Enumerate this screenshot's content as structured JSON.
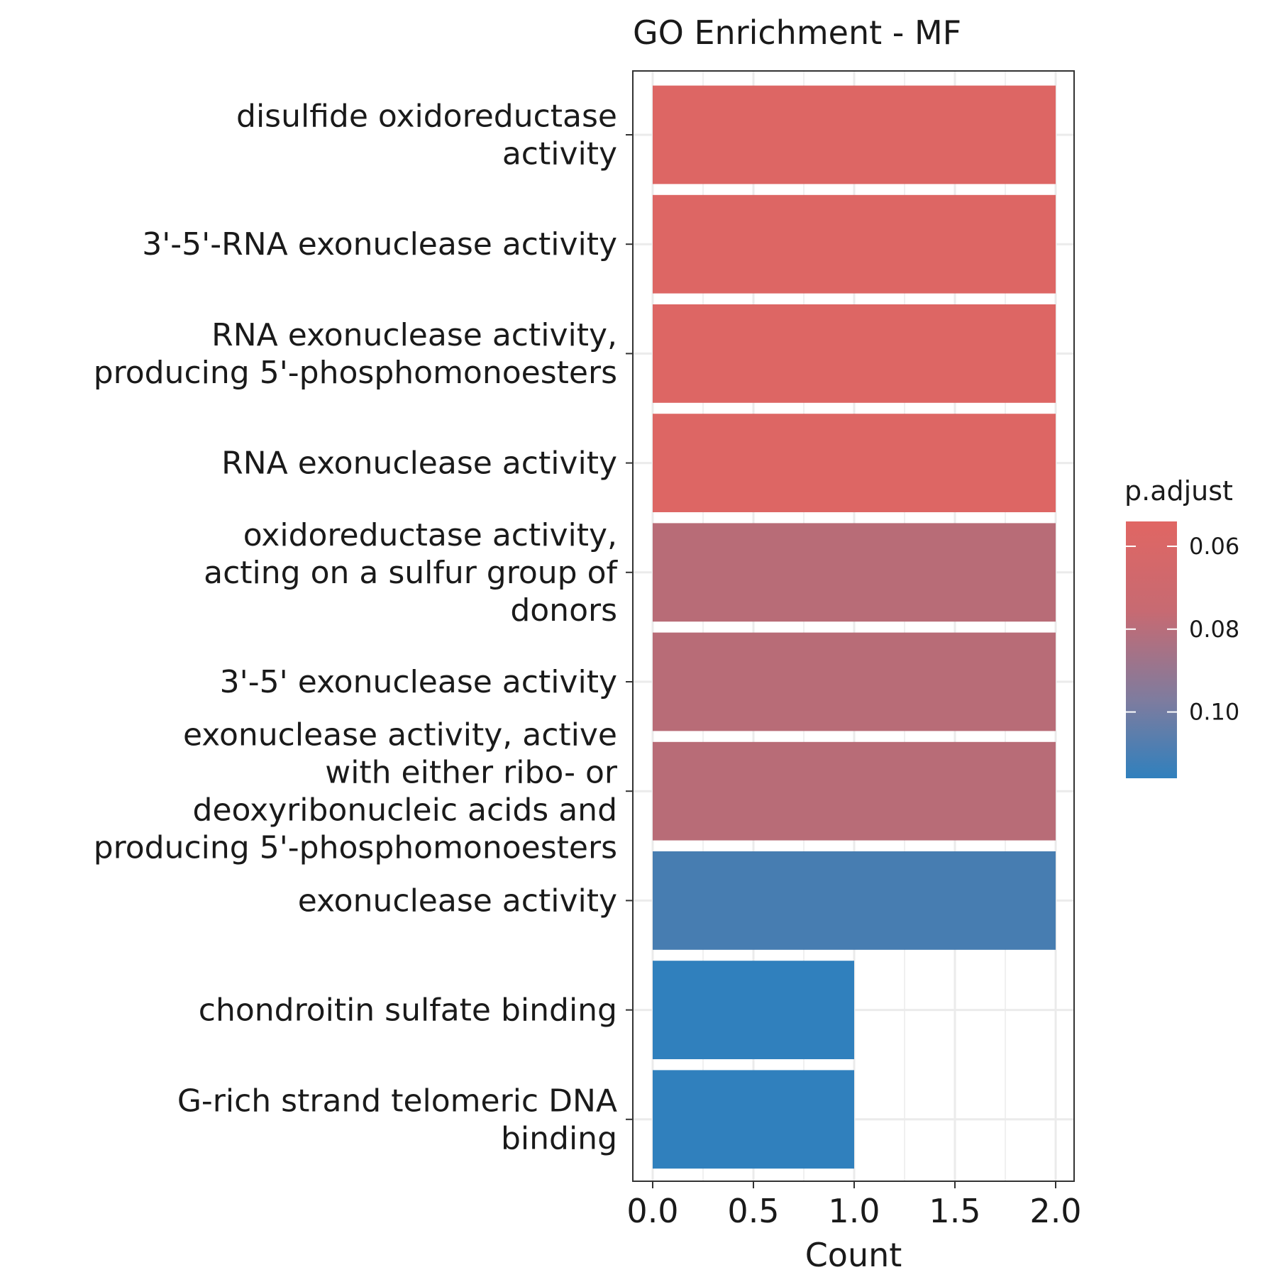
{
  "chart_data": {
    "type": "bar",
    "orientation": "horizontal",
    "title": "GO Enrichment - MF",
    "xlabel": "Count",
    "ylabel": "",
    "xlim": [
      -0.1,
      2.1
    ],
    "x_ticks": [
      "0.0",
      "0.5",
      "1.0",
      "1.5",
      "2.0"
    ],
    "grid": true,
    "categories": [
      [
        "disulfide oxidoreductase",
        "activity"
      ],
      [
        "3'-5'-RNA exonuclease activity"
      ],
      [
        "RNA exonuclease activity,",
        "producing 5'-phosphomonoesters"
      ],
      [
        "RNA exonuclease activity"
      ],
      [
        "oxidoreductase activity,",
        "acting on a sulfur group of",
        "donors"
      ],
      [
        "3'-5' exonuclease activity"
      ],
      [
        "exonuclease activity, active",
        "with either ribo- or",
        "deoxyribonucleic acids and",
        "producing 5'-phosphomonoesters"
      ],
      [
        "exonuclease activity"
      ],
      [
        "chondroitin sulfate binding"
      ],
      [
        "G-rich strand telomeric DNA",
        "binding"
      ]
    ],
    "values": [
      2,
      2,
      2,
      2,
      2,
      2,
      2,
      2,
      1,
      1
    ],
    "p_adjust": [
      0.055,
      0.055,
      0.055,
      0.055,
      0.068,
      0.068,
      0.068,
      0.108,
      0.116,
      0.116
    ],
    "legend": {
      "title": "p.adjust",
      "placement": "right",
      "ticks": [
        "0.06",
        "0.08",
        "0.10"
      ],
      "range": [
        0.116,
        0.054
      ],
      "low_color": "#3080bd",
      "high_color": "#e06663"
    },
    "colors": {
      "bar_high": "#e06663",
      "bar_low": "#3080bd",
      "grid": "#ebebeb",
      "panel_border": "#333333"
    }
  }
}
